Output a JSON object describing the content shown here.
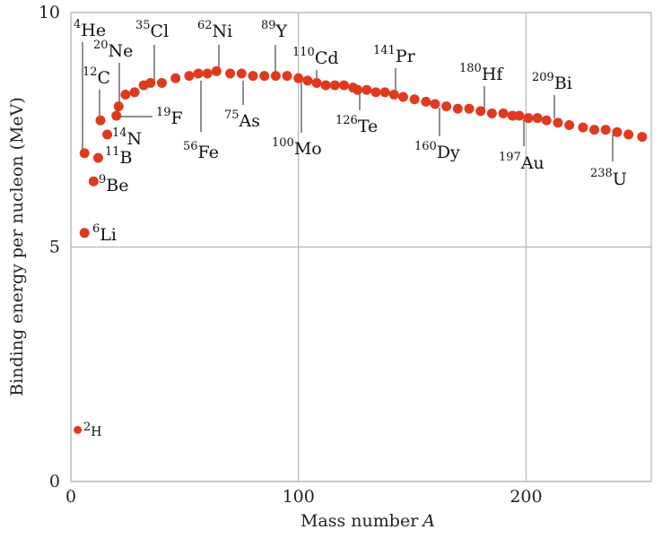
{
  "chart_data": {
    "type": "scatter",
    "title": "",
    "xlabel": "Mass number",
    "xlabel_symbol": "A",
    "ylabel": "Binding energy per nucleon (MeV)",
    "xlim": [
      0,
      255
    ],
    "ylim": [
      0,
      10
    ],
    "x_ticks": [
      "0",
      "100",
      "200"
    ],
    "y_ticks": [
      "0",
      "5",
      "10"
    ],
    "grid": true,
    "point_color": "#e03a1e",
    "labeled_points": [
      {
        "mass": "2",
        "symbol": "H",
        "x": 3,
        "y": 1.1
      },
      {
        "mass": "6",
        "symbol": "Li",
        "x": 6,
        "y": 5.3
      },
      {
        "mass": "9",
        "symbol": "Be",
        "x": 10,
        "y": 6.4
      },
      {
        "mass": "11",
        "symbol": "B",
        "x": 12,
        "y": 6.9
      },
      {
        "mass": "4",
        "symbol": "He",
        "x": 6,
        "y": 7.0
      },
      {
        "mass": "14",
        "symbol": "N",
        "x": 16,
        "y": 7.4
      },
      {
        "mass": "12",
        "symbol": "C",
        "x": 13,
        "y": 7.7
      },
      {
        "mass": "19",
        "symbol": "F",
        "x": 20,
        "y": 7.8
      },
      {
        "mass": "20",
        "symbol": "Ne",
        "x": 21,
        "y": 8.0
      },
      {
        "mass": "35",
        "symbol": "Cl",
        "x": 35,
        "y": 8.5
      },
      {
        "mass": "56",
        "symbol": "Fe",
        "x": 56,
        "y": 8.7
      },
      {
        "mass": "62",
        "symbol": "Ni",
        "x": 64,
        "y": 8.75
      },
      {
        "mass": "75",
        "symbol": "As",
        "x": 75,
        "y": 8.7
      },
      {
        "mass": "89",
        "symbol": "Y",
        "x": 90,
        "y": 8.65
      },
      {
        "mass": "100",
        "symbol": "Mo",
        "x": 100,
        "y": 8.6
      },
      {
        "mass": "110",
        "symbol": "Cd",
        "x": 108,
        "y": 8.5
      },
      {
        "mass": "126",
        "symbol": "Te",
        "x": 126,
        "y": 8.35
      },
      {
        "mass": "141",
        "symbol": "Pr",
        "x": 142,
        "y": 8.25
      },
      {
        "mass": "160",
        "symbol": "Dy",
        "x": 160,
        "y": 8.05
      },
      {
        "mass": "180",
        "symbol": "Hf",
        "x": 180,
        "y": 7.9
      },
      {
        "mass": "197",
        "symbol": "Au",
        "x": 197,
        "y": 7.8
      },
      {
        "mass": "209",
        "symbol": "Bi",
        "x": 209,
        "y": 7.7
      },
      {
        "mass": "238",
        "symbol": "U",
        "x": 235,
        "y": 7.5
      }
    ],
    "points": [
      {
        "x": 3,
        "y": 1.1
      },
      {
        "x": 6,
        "y": 5.3
      },
      {
        "x": 10,
        "y": 6.4
      },
      {
        "x": 12,
        "y": 6.9
      },
      {
        "x": 6,
        "y": 7.0
      },
      {
        "x": 16,
        "y": 7.4
      },
      {
        "x": 13,
        "y": 7.7
      },
      {
        "x": 20,
        "y": 7.8
      },
      {
        "x": 21,
        "y": 8.0
      },
      {
        "x": 24,
        "y": 8.25
      },
      {
        "x": 28,
        "y": 8.3
      },
      {
        "x": 32,
        "y": 8.45
      },
      {
        "x": 35,
        "y": 8.5
      },
      {
        "x": 40,
        "y": 8.5
      },
      {
        "x": 46,
        "y": 8.6
      },
      {
        "x": 52,
        "y": 8.65
      },
      {
        "x": 56,
        "y": 8.7
      },
      {
        "x": 60,
        "y": 8.7
      },
      {
        "x": 64,
        "y": 8.75
      },
      {
        "x": 70,
        "y": 8.7
      },
      {
        "x": 75,
        "y": 8.7
      },
      {
        "x": 80,
        "y": 8.65
      },
      {
        "x": 85,
        "y": 8.65
      },
      {
        "x": 90,
        "y": 8.65
      },
      {
        "x": 95,
        "y": 8.65
      },
      {
        "x": 100,
        "y": 8.6
      },
      {
        "x": 104,
        "y": 8.55
      },
      {
        "x": 108,
        "y": 8.5
      },
      {
        "x": 112,
        "y": 8.45
      },
      {
        "x": 116,
        "y": 8.45
      },
      {
        "x": 120,
        "y": 8.45
      },
      {
        "x": 124,
        "y": 8.4
      },
      {
        "x": 126,
        "y": 8.35
      },
      {
        "x": 130,
        "y": 8.35
      },
      {
        "x": 134,
        "y": 8.3
      },
      {
        "x": 138,
        "y": 8.3
      },
      {
        "x": 142,
        "y": 8.25
      },
      {
        "x": 146,
        "y": 8.2
      },
      {
        "x": 151,
        "y": 8.15
      },
      {
        "x": 156,
        "y": 8.1
      },
      {
        "x": 160,
        "y": 8.05
      },
      {
        "x": 165,
        "y": 8.0
      },
      {
        "x": 170,
        "y": 7.95
      },
      {
        "x": 175,
        "y": 7.95
      },
      {
        "x": 180,
        "y": 7.9
      },
      {
        "x": 185,
        "y": 7.85
      },
      {
        "x": 190,
        "y": 7.85
      },
      {
        "x": 194,
        "y": 7.8
      },
      {
        "x": 197,
        "y": 7.8
      },
      {
        "x": 201,
        "y": 7.75
      },
      {
        "x": 205,
        "y": 7.75
      },
      {
        "x": 209,
        "y": 7.7
      },
      {
        "x": 214,
        "y": 7.65
      },
      {
        "x": 219,
        "y": 7.6
      },
      {
        "x": 225,
        "y": 7.55
      },
      {
        "x": 230,
        "y": 7.5
      },
      {
        "x": 235,
        "y": 7.5
      },
      {
        "x": 240,
        "y": 7.45
      },
      {
        "x": 245,
        "y": 7.4
      },
      {
        "x": 251,
        "y": 7.35
      }
    ]
  }
}
